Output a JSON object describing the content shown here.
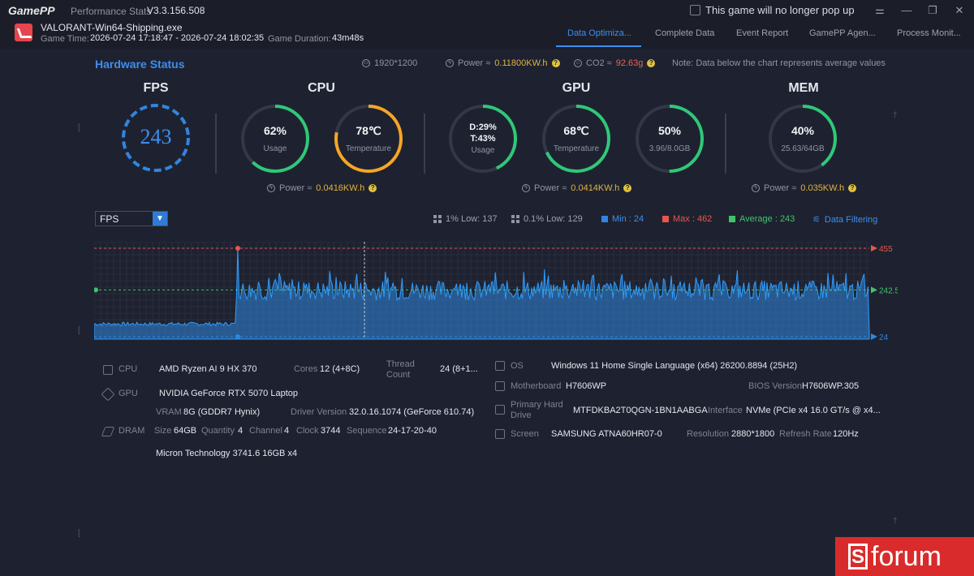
{
  "app": {
    "logo": "GamePP",
    "subtitle": "Performance Stats",
    "version": "V3.3.156.508",
    "popup_text": "This game will no longer pop up"
  },
  "window_controls": {
    "settings": "⚌",
    "minimize": "—",
    "restore": "❐",
    "close": "✕"
  },
  "session": {
    "exe": "VALORANT-Win64-Shipping.exe",
    "game_time_label": "Game Time:",
    "game_time": "2026-07-24 17:18:47 - 2026-07-24 18:02:35",
    "duration_label": "Game Duration:",
    "duration": "43m48s"
  },
  "tabs": [
    "Data Optimiza...",
    "Complete Data",
    "Event Report",
    "GamePP Agen...",
    "Process Monit..."
  ],
  "hardware": {
    "title": "Hardware Status",
    "resolution": "1920*1200",
    "power_label": "Power ≈",
    "power_value": "0.11800KW.h",
    "co2_label": "CO2 ≈",
    "co2_value": "92.63g",
    "note": "Note: Data below the chart represents average values"
  },
  "sections": {
    "fps": "FPS",
    "cpu": "CPU",
    "gpu": "GPU",
    "mem": "MEM"
  },
  "fps_gauge": {
    "value": "243"
  },
  "gauges": {
    "cpu_usage": {
      "value": "62%",
      "label": "Usage",
      "fraction": 0.62,
      "color": "#2fc878"
    },
    "cpu_temp": {
      "value": "78℃",
      "label": "Temperature",
      "fraction": 0.78,
      "color": "#f5a623"
    },
    "gpu_usage": {
      "value_d": "D:29%",
      "value_t": "T:43%",
      "label": "Usage",
      "fraction": 0.43,
      "color": "#2fc878"
    },
    "gpu_temp": {
      "value": "68℃",
      "label": "Temperature",
      "fraction": 0.68,
      "color": "#2fc878"
    },
    "gpu_mem": {
      "value": "50%",
      "label": "3.96/8.0GB",
      "fraction": 0.5,
      "color": "#2fc878"
    },
    "mem": {
      "value": "40%",
      "label": "25.63/64GB",
      "fraction": 0.4,
      "color": "#2fc878"
    }
  },
  "power": {
    "label": "Power ≈",
    "cpu": "0.0416KW.h",
    "gpu": "0.0414KW.h",
    "mem": "0.035KW.h"
  },
  "chart_controls": {
    "dropdown": "FPS",
    "low1": "1% Low: 137",
    "low01": "0.1% Low: 129",
    "min": "Min : 24",
    "max": "Max : 462",
    "avg": "Average : 243",
    "filter": "Data Filtering"
  },
  "chart_data": {
    "type": "area",
    "series": [
      {
        "values": []
      }
    ],
    "markers": {
      "max": "455",
      "avg": "242.5",
      "min": "24"
    },
    "ylim": [
      0,
      480
    ],
    "color": "#2f86e0"
  },
  "details": {
    "cpu_label": "CPU",
    "cpu_name": "AMD Ryzen AI 9 HX 370",
    "cores_label": "Cores",
    "cores": "12 (4+8C)",
    "thread_label1": "Thread",
    "thread_label2": "Count",
    "threads": "24 (8+1...",
    "gpu_label": "GPU",
    "gpu_name": "NVIDIA GeForce RTX 5070 Laptop",
    "vram_label": "VRAM",
    "vram": "8G (GDDR7 Hynix)",
    "driver_label": "Driver Version",
    "driver": "32.0.16.1074 (GeForce 610.74)",
    "dram_label": "DRAM",
    "size_label": "Size",
    "size": "64GB",
    "qty_label": "Quantity",
    "qty": "4",
    "channel_label": "Channel",
    "channel": "4",
    "clock_label": "Clock",
    "clock": "3744",
    "seq_label": "Sequence",
    "seq": "24-17-20-40",
    "dram_vendor": "Micron Technology 3741.6 16GB x4",
    "os_label": "OS",
    "os": "Windows 11 Home Single Language (x64) 26200.8894 (25H2)",
    "mb_label": "Motherboard",
    "mb": "H7606WP",
    "bios_label": "BIOS Version",
    "bios": "H7606WP.305",
    "drive_label1": "Primary Hard",
    "drive_label2": "Drive",
    "drive": "MTFDKBA2T0QGN-1BN1AABGA",
    "iface_label": "Interface",
    "iface": "NVMe (PCIe x4 16.0 GT/s @ x4...",
    "screen_label": "Screen",
    "screen": "SAMSUNG ATNA60HR07-0",
    "res_label": "Resolution",
    "res": "2880*1800",
    "refresh_label": "Refresh Rate",
    "refresh": "120Hz"
  },
  "watermark": {
    "s": "S",
    "text": "forum"
  }
}
